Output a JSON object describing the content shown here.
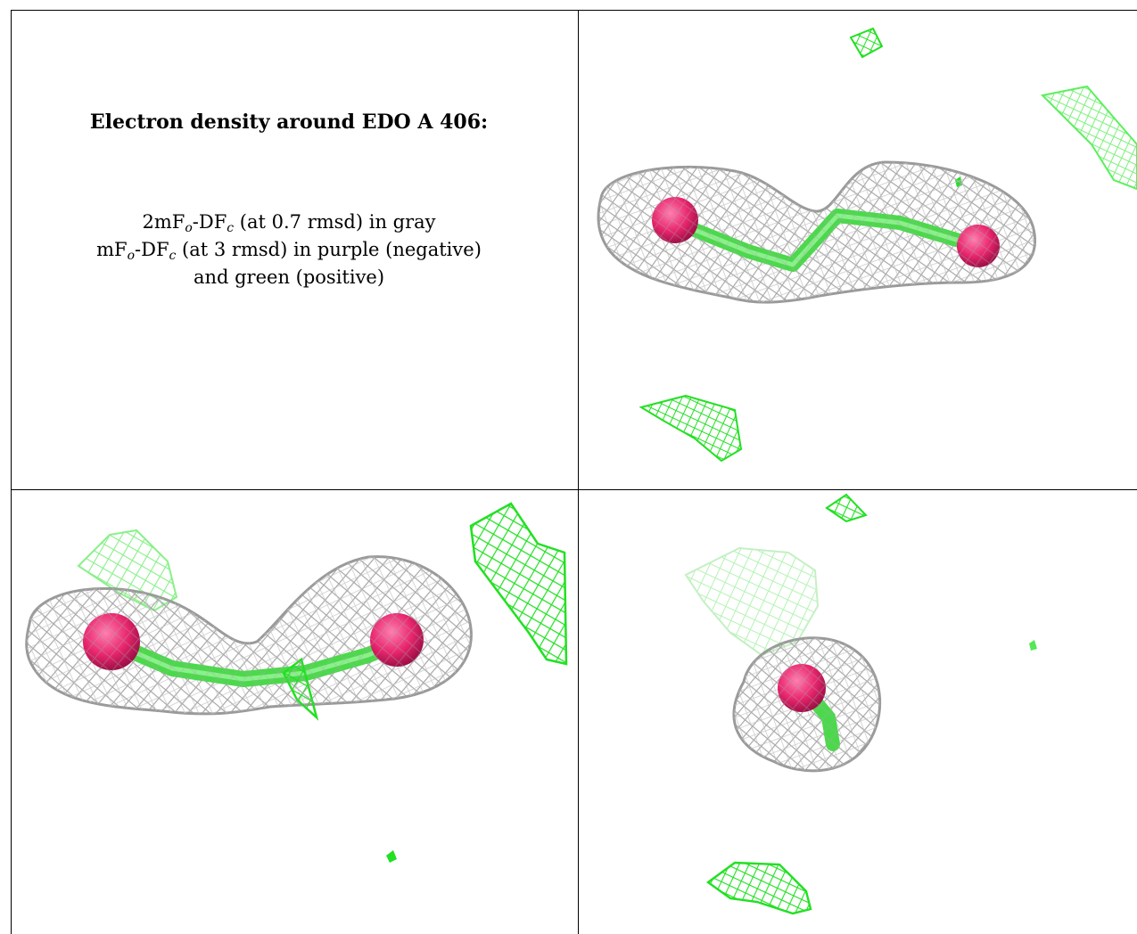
{
  "caption": {
    "title": "Electron density around EDO A 406:",
    "line1": {
      "pre": "2mF",
      "sub1": "o",
      "mid": "-DF",
      "sub2": "c",
      "post": " (at 0.7 rmsd) in gray"
    },
    "line2": {
      "pre": "mF",
      "sub1": "o",
      "mid": "-DF",
      "sub2": "c",
      "post": " (at 3 rmsd) in purple (negative)"
    },
    "line3": "and green (positive)"
  },
  "colors": {
    "density_2fofc": "#a9a9a9",
    "density_fofc_positive": "#22e022",
    "ligand_oxygen": "#e8256d",
    "ligand_bond": "#5cf05c",
    "frame": "#000000"
  },
  "views": [
    {
      "label": "view-1",
      "orientation": "side"
    },
    {
      "label": "view-2",
      "orientation": "side-rotated"
    },
    {
      "label": "view-3",
      "orientation": "end-on"
    }
  ]
}
